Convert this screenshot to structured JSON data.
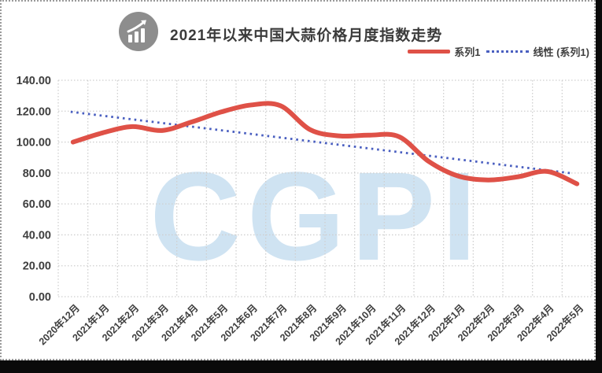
{
  "header": {
    "title": "2021年以来中国大蒜价格月度指数走势",
    "icon": "chart-increasing-icon"
  },
  "legend": {
    "series1_label": "系列1",
    "trend_label": "线性 (系列1)"
  },
  "colors": {
    "series_red": "#df5147",
    "trend_blue": "#4a5fc0",
    "watermark_blue": "#cfe3f2",
    "grid_gray": "#cfcfcf",
    "axis_text": "#3f3f3f",
    "title_text": "#3b3b3b",
    "icon_gray": "#8d8d8d",
    "canvas_white": "#ffffff",
    "desktop_black": "#0a0a0a"
  },
  "chart_data": {
    "type": "line",
    "title": "2021年以来中国大蒜价格月度指数走势",
    "categories": [
      "2020年12月",
      "2021年1月",
      "2021年2月",
      "2021年3月",
      "2021年4月",
      "2021年5月",
      "2021年6月",
      "2021年7月",
      "2021年8月",
      "2021年9月",
      "2021年10月",
      "2021年11月",
      "2021年12月",
      "2022年1月",
      "2022年2月",
      "2022年3月",
      "2022年4月",
      "2022年5月"
    ],
    "series": [
      {
        "name": "系列1",
        "style": "smooth-solid",
        "color": "#df5147",
        "line_width": 6,
        "values": [
          100,
          106,
          110,
          107.5,
          113,
          119.5,
          124,
          123.5,
          108,
          104,
          104.5,
          103.5,
          87.5,
          78,
          75.5,
          77.5,
          81,
          73
        ]
      },
      {
        "name": "线性 (系列1)",
        "style": "linear-trendline-dotted",
        "color": "#4a5fc0",
        "trend_start": 119.6,
        "trend_end": 79.7
      }
    ],
    "ylim": [
      0,
      140
    ],
    "ytick_step": 20,
    "ytick_labels": [
      "140.00",
      "120.00",
      "100.00",
      "80.00",
      "60.00",
      "40.00",
      "20.00",
      "0.00"
    ],
    "xlabel": "",
    "ylabel": "",
    "grid": true,
    "x_label_rotation_deg": -45,
    "legend_position": "top-right",
    "watermark": "CGPI"
  }
}
